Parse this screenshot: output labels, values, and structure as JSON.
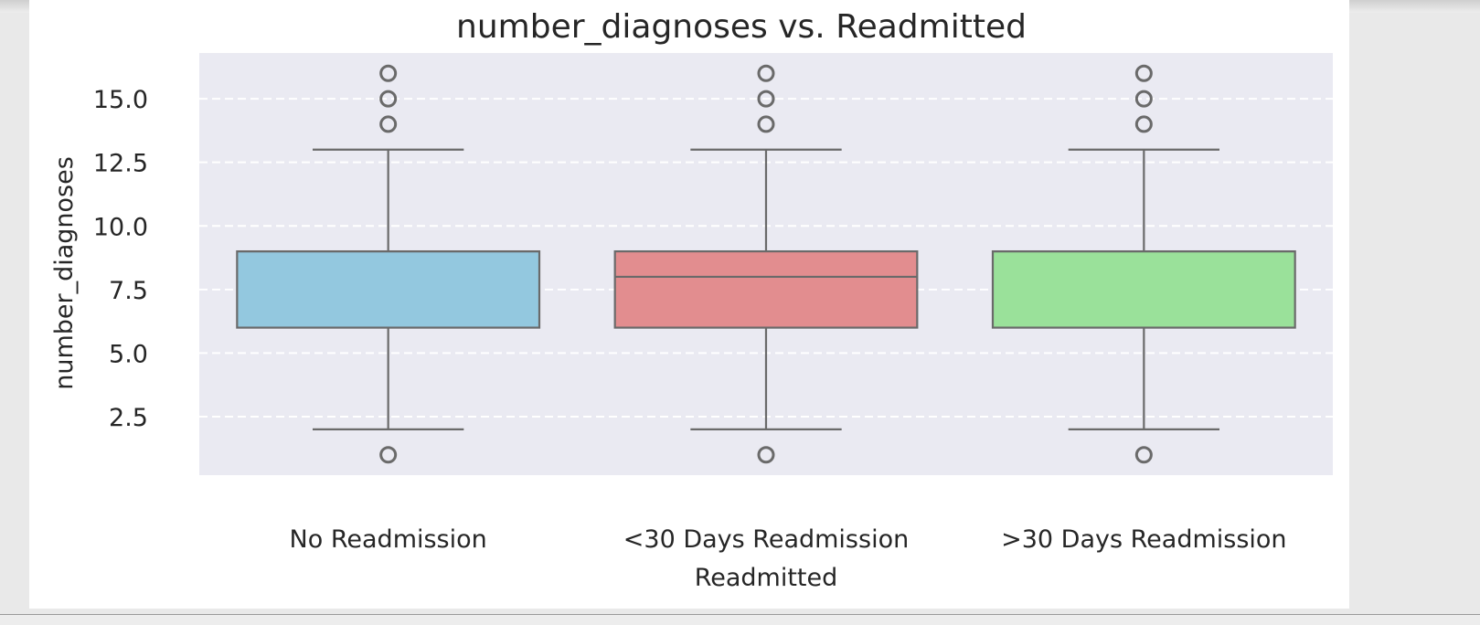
{
  "chart_data": {
    "type": "box",
    "title": "number_diagnoses vs. Readmitted",
    "xlabel": "Readmitted",
    "ylabel": "number_diagnoses",
    "categories": [
      "No Readmission",
      "<30 Days Readmission",
      ">30 Days Readmission"
    ],
    "ylim": [
      0.2,
      16.8
    ],
    "yticks": [
      2.5,
      5.0,
      7.5,
      10.0,
      12.5,
      15.0
    ],
    "ytick_labels": [
      "2.5",
      "5.0",
      "7.5",
      "10.0",
      "12.5",
      "15.0"
    ],
    "grid": true,
    "boxes": [
      {
        "category": "No Readmission",
        "whisker_low": 2,
        "q1": 6,
        "median": 9,
        "q3": 9,
        "whisker_high": 13,
        "outliers": [
          1,
          14,
          15,
          16
        ],
        "color": "#93c8df"
      },
      {
        "category": "<30 Days Readmission",
        "whisker_low": 2,
        "q1": 6,
        "median": 8,
        "q3": 9,
        "whisker_high": 13,
        "outliers": [
          1,
          14,
          15,
          16
        ],
        "color": "#e28d8f"
      },
      {
        "category": ">30 Days Readmission",
        "whisker_low": 2,
        "q1": 6,
        "median": 9,
        "q3": 9,
        "whisker_high": 13,
        "outliers": [
          1,
          14,
          15,
          16
        ],
        "color": "#9ae19a"
      }
    ]
  }
}
